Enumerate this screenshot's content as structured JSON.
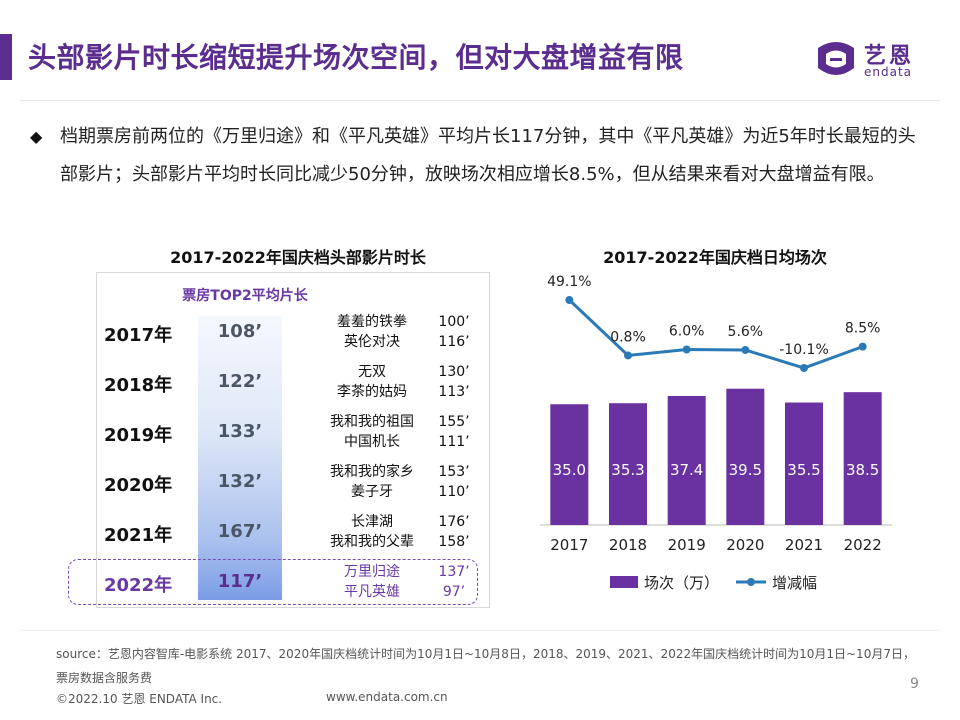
{
  "title": "头部影片时长缩短提升场次空间，但对大盘增益有限",
  "logo": {
    "cn": "艺恩",
    "en": "endata",
    "color": "#5b2d8e"
  },
  "bullet": {
    "icon": "diamond-icon",
    "text": "档期票房前两位的《万里归途》和《平凡英雄》平均片长117分钟，其中《平凡英雄》为近5年时长最短的头部影片；头部影片平均时长同比减少50分钟，放映场次相应增长8.5%，但从结果来看对大盘增益有限。"
  },
  "left_table": {
    "title": "2017-2022年国庆档头部影片时长",
    "column_header": "票房TOP2平均片长",
    "rows": [
      {
        "year": "2017年",
        "avg": "108’",
        "films": [
          "羞羞的铁拳",
          "英伦对决"
        ],
        "durations": [
          "100’",
          "116’"
        ]
      },
      {
        "year": "2018年",
        "avg": "122’",
        "films": [
          "无双",
          "李茶的姑妈"
        ],
        "durations": [
          "130’",
          "113’"
        ]
      },
      {
        "year": "2019年",
        "avg": "133’",
        "films": [
          "我和我的祖国",
          "中国机长"
        ],
        "durations": [
          "155’",
          "111’"
        ]
      },
      {
        "year": "2020年",
        "avg": "132’",
        "films": [
          "我和我的家乡",
          "姜子牙"
        ],
        "durations": [
          "153’",
          "110’"
        ]
      },
      {
        "year": "2021年",
        "avg": "167’",
        "films": [
          "长津湖",
          "我和我的父辈"
        ],
        "durations": [
          "176’",
          "158’"
        ]
      },
      {
        "year": "2022年",
        "avg": "117’",
        "films": [
          "万里归途",
          "平凡英雄"
        ],
        "durations": [
          "137’",
          "97’"
        ]
      }
    ]
  },
  "chart_data": {
    "type": "bar",
    "title": "2017-2022年国庆档日均场次",
    "categories": [
      "2017",
      "2018",
      "2019",
      "2020",
      "2021",
      "2022"
    ],
    "series": [
      {
        "name": "场次（万）",
        "type": "bar",
        "color": "#6a31a0",
        "values": [
          35.0,
          35.3,
          37.4,
          39.5,
          35.5,
          38.5
        ],
        "labels": [
          "35.0",
          "35.3",
          "37.4",
          "39.5",
          "35.5",
          "38.5"
        ]
      },
      {
        "name": "增减幅",
        "type": "line",
        "color": "#2a7ab8",
        "values": [
          49.1,
          0.8,
          6.0,
          5.6,
          -10.1,
          8.5
        ],
        "labels": [
          "49.1%",
          "0.8%",
          "6.0%",
          "5.6%",
          "-10.1%",
          "8.5%"
        ]
      }
    ],
    "legend": "bottom",
    "grid": false
  },
  "footer": {
    "source": "source：艺恩内容智库-电影系统      2017、2020年国庆档统计时间为10月1日~10月8日，2018、2019、2021、2022年国庆档统计时间为10月1日~10月7日，票房数据含服务费",
    "copyright": "©2022.10 艺恩 ENDATA Inc.",
    "website": "www.endata.com.cn",
    "page": "9"
  }
}
